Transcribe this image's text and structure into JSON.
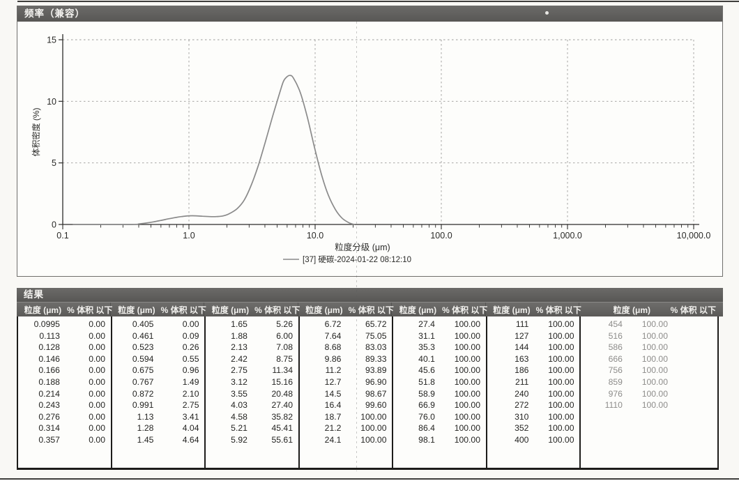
{
  "chart_panel": {
    "title": "频率（兼容）"
  },
  "chart_data": {
    "type": "line",
    "title": "频率（兼容）",
    "xlabel": "粒度分级 (μm)",
    "ylabel": "体积密度 (%)",
    "x_scale": "log",
    "xlim": [
      0.1,
      10000
    ],
    "ylim": [
      0,
      15
    ],
    "x_tick_values": [
      0.1,
      1,
      10,
      100,
      1000,
      10000
    ],
    "x_tick_labels": [
      "0.1",
      "1.0",
      "10.0",
      "100.0",
      "1,000.0",
      "10,000.0"
    ],
    "y_ticks": [
      0,
      5,
      10,
      15
    ],
    "grid": true,
    "legend_position": "bottom",
    "line_color": "#8a8a8a",
    "series": [
      {
        "name": "[37] 硬碳-2024-01-22 08:12:10",
        "x": [
          0.12,
          0.34,
          0.405,
          0.461,
          0.523,
          0.594,
          0.675,
          0.767,
          0.872,
          0.991,
          1.13,
          1.28,
          1.45,
          1.65,
          1.88,
          2.13,
          2.42,
          2.75,
          3.12,
          3.55,
          4.03,
          4.58,
          5.21,
          5.6,
          5.92,
          6.3,
          6.72,
          7.64,
          8.68,
          9.86,
          11.2,
          12.7,
          14.5,
          16.4,
          18.7,
          20.5
        ],
        "y": [
          0,
          0,
          0.05,
          0.12,
          0.21,
          0.32,
          0.44,
          0.55,
          0.64,
          0.7,
          0.7,
          0.67,
          0.64,
          0.64,
          0.7,
          0.92,
          1.3,
          2.0,
          3.2,
          4.8,
          6.7,
          8.7,
          10.6,
          11.6,
          11.95,
          12.1,
          11.9,
          10.7,
          8.7,
          6.3,
          4.1,
          2.4,
          1.2,
          0.5,
          0.12,
          0
        ]
      }
    ]
  },
  "results_panel": {
    "title": "结果",
    "col_size_label": "粒度 (μm)",
    "col_pct_label": "% 体积 以下",
    "groups": [
      [
        [
          "0.0995",
          "0.00"
        ],
        [
          "0.113",
          "0.00"
        ],
        [
          "0.128",
          "0.00"
        ],
        [
          "0.146",
          "0.00"
        ],
        [
          "0.166",
          "0.00"
        ],
        [
          "0.188",
          "0.00"
        ],
        [
          "0.214",
          "0.00"
        ],
        [
          "0.243",
          "0.00"
        ],
        [
          "0.276",
          "0.00"
        ],
        [
          "0.314",
          "0.00"
        ],
        [
          "0.357",
          "0.00"
        ]
      ],
      [
        [
          "0.405",
          "0.00"
        ],
        [
          "0.461",
          "0.09"
        ],
        [
          "0.523",
          "0.26"
        ],
        [
          "0.594",
          "0.55"
        ],
        [
          "0.675",
          "0.96"
        ],
        [
          "0.767",
          "1.49"
        ],
        [
          "0.872",
          "2.10"
        ],
        [
          "0.991",
          "2.75"
        ],
        [
          "1.13",
          "3.41"
        ],
        [
          "1.28",
          "4.04"
        ],
        [
          "1.45",
          "4.64"
        ]
      ],
      [
        [
          "1.65",
          "5.26"
        ],
        [
          "1.88",
          "6.00"
        ],
        [
          "2.13",
          "7.08"
        ],
        [
          "2.42",
          "8.75"
        ],
        [
          "2.75",
          "11.34"
        ],
        [
          "3.12",
          "15.16"
        ],
        [
          "3.55",
          "20.48"
        ],
        [
          "4.03",
          "27.40"
        ],
        [
          "4.58",
          "35.82"
        ],
        [
          "5.21",
          "45.41"
        ],
        [
          "5.92",
          "55.61"
        ]
      ],
      [
        [
          "6.72",
          "65.72"
        ],
        [
          "7.64",
          "75.05"
        ],
        [
          "8.68",
          "83.03"
        ],
        [
          "9.86",
          "89.33"
        ],
        [
          "11.2",
          "93.89"
        ],
        [
          "12.7",
          "96.90"
        ],
        [
          "14.5",
          "98.67"
        ],
        [
          "16.4",
          "99.60"
        ],
        [
          "18.7",
          "100.00"
        ],
        [
          "21.2",
          "100.00"
        ],
        [
          "24.1",
          "100.00"
        ]
      ],
      [
        [
          "27.4",
          "100.00"
        ],
        [
          "31.1",
          "100.00"
        ],
        [
          "35.3",
          "100.00"
        ],
        [
          "40.1",
          "100.00"
        ],
        [
          "45.6",
          "100.00"
        ],
        [
          "51.8",
          "100.00"
        ],
        [
          "58.9",
          "100.00"
        ],
        [
          "66.9",
          "100.00"
        ],
        [
          "76.0",
          "100.00"
        ],
        [
          "86.4",
          "100.00"
        ],
        [
          "98.1",
          "100.00"
        ]
      ],
      [
        [
          "111",
          "100.00"
        ],
        [
          "127",
          "100.00"
        ],
        [
          "144",
          "100.00"
        ],
        [
          "163",
          "100.00"
        ],
        [
          "186",
          "100.00"
        ],
        [
          "211",
          "100.00"
        ],
        [
          "240",
          "100.00"
        ],
        [
          "272",
          "100.00"
        ],
        [
          "310",
          "100.00"
        ],
        [
          "352",
          "100.00"
        ],
        [
          "400",
          "100.00"
        ]
      ],
      [
        [
          "454",
          "100.00"
        ],
        [
          "516",
          "100.00"
        ],
        [
          "586",
          "100.00"
        ],
        [
          "666",
          "100.00"
        ],
        [
          "756",
          "100.00"
        ],
        [
          "859",
          "100.00"
        ],
        [
          "976",
          "100.00"
        ],
        [
          "1110",
          "100.00"
        ]
      ]
    ]
  }
}
